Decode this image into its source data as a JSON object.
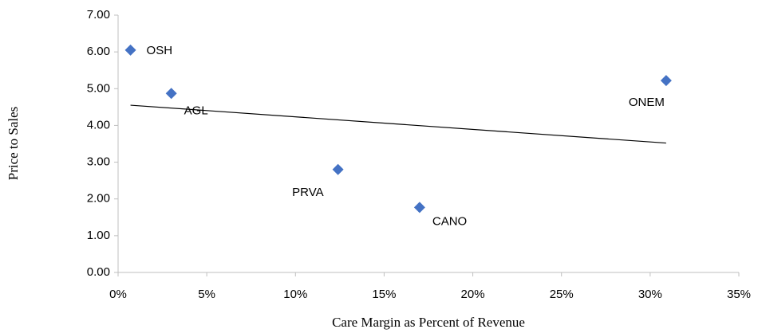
{
  "chart_data": {
    "type": "scatter",
    "x_label": "Care Margin as Percent of Revenue",
    "y_label": "Price to Sales",
    "xlim": [
      0,
      35
    ],
    "xticks": [
      {
        "value": 0,
        "label": "0%"
      },
      {
        "value": 5,
        "label": "5%"
      },
      {
        "value": 10,
        "label": "10%"
      },
      {
        "value": 15,
        "label": "15%"
      },
      {
        "value": 20,
        "label": "20%"
      },
      {
        "value": 25,
        "label": "25%"
      },
      {
        "value": 30,
        "label": "30%"
      },
      {
        "value": 35,
        "label": "35%"
      }
    ],
    "ylim": [
      0,
      7
    ],
    "yticks": [
      {
        "value": 0,
        "label": "0.00"
      },
      {
        "value": 1,
        "label": "1.00"
      },
      {
        "value": 2,
        "label": "2.00"
      },
      {
        "value": 3,
        "label": "3.00"
      },
      {
        "value": 4,
        "label": "4.00"
      },
      {
        "value": 5,
        "label": "5.00"
      },
      {
        "value": 6,
        "label": "6.00"
      },
      {
        "value": 7,
        "label": "7.00"
      }
    ],
    "color": "#4472c4",
    "point_labels": [
      "OSH",
      "AGL",
      "PRVA",
      "CANO",
      "ONEM"
    ],
    "x": [
      0.7,
      3.0,
      12.4,
      17.0,
      30.9
    ],
    "y": [
      6.05,
      4.87,
      2.8,
      1.77,
      5.22
    ],
    "trendline": {
      "x": [
        0.7,
        30.9
      ],
      "y": [
        4.55,
        3.52
      ]
    }
  }
}
